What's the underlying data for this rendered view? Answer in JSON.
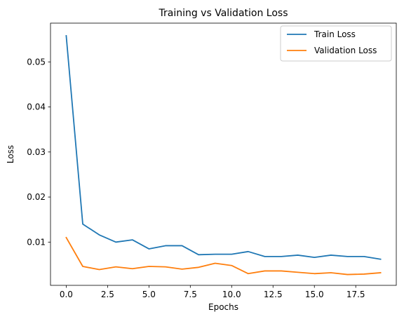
{
  "chart_data": {
    "type": "line",
    "title": "Training vs Validation Loss",
    "xlabel": "Epochs",
    "ylabel": "Loss",
    "x": [
      0,
      1,
      2,
      3,
      4,
      5,
      6,
      7,
      8,
      9,
      10,
      11,
      12,
      13,
      14,
      15,
      16,
      17,
      18,
      19
    ],
    "xlim": [
      -0.95,
      19.95
    ],
    "ylim": [
      0.0004,
      0.0586
    ],
    "xticks": [
      0.0,
      2.5,
      5.0,
      7.5,
      10.0,
      12.5,
      15.0,
      17.5
    ],
    "xtick_labels": [
      "0.0",
      "2.5",
      "5.0",
      "7.5",
      "10.0",
      "12.5",
      "15.0",
      "17.5"
    ],
    "yticks": [
      0.01,
      0.02,
      0.03,
      0.04,
      0.05
    ],
    "ytick_labels": [
      "0.01",
      "0.02",
      "0.03",
      "0.04",
      "0.05"
    ],
    "grid": false,
    "legend_position": "top-right",
    "series": [
      {
        "name": "Train Loss",
        "color": "#1f77b4",
        "values": [
          0.0558,
          0.014,
          0.0116,
          0.01,
          0.0105,
          0.0085,
          0.0092,
          0.0092,
          0.0072,
          0.0073,
          0.0073,
          0.0079,
          0.0068,
          0.0068,
          0.0071,
          0.0066,
          0.0071,
          0.0068,
          0.0068,
          0.0062
        ]
      },
      {
        "name": "Validation Loss",
        "color": "#ff7f0e",
        "values": [
          0.011,
          0.0046,
          0.0039,
          0.0045,
          0.0041,
          0.0046,
          0.0045,
          0.004,
          0.0044,
          0.0053,
          0.0048,
          0.003,
          0.0036,
          0.0036,
          0.0033,
          0.003,
          0.0032,
          0.0028,
          0.0029,
          0.0032
        ]
      }
    ]
  }
}
